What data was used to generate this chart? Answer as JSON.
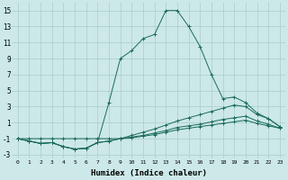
{
  "xlabel": "Humidex (Indice chaleur)",
  "background_color": "#cce8e8",
  "grid_color": "#aacccc",
  "line_color": "#1a6b5a",
  "xlim": [
    -0.5,
    23.5
  ],
  "ylim": [
    -3.5,
    16
  ],
  "xticks": [
    0,
    1,
    2,
    3,
    4,
    5,
    6,
    7,
    8,
    9,
    10,
    11,
    12,
    13,
    14,
    15,
    16,
    17,
    18,
    19,
    20,
    21,
    22,
    23
  ],
  "yticks": [
    -3,
    -1,
    1,
    3,
    5,
    7,
    9,
    11,
    13,
    15
  ],
  "series": [
    {
      "x": [
        0,
        1,
        2,
        3,
        4,
        5,
        6,
        7,
        8,
        9,
        10,
        11,
        12,
        13,
        14,
        15,
        16,
        17,
        18,
        19,
        20,
        21,
        22,
        23
      ],
      "y": [
        -1,
        -1.3,
        -1.6,
        -1.5,
        -2,
        -2.3,
        -2.2,
        -1.5,
        3.5,
        9,
        10.0,
        11.5,
        12.0,
        15,
        15,
        13,
        10.5,
        7,
        4,
        4.2,
        3.5,
        2.2,
        1.5,
        0.5
      ]
    },
    {
      "x": [
        0,
        1,
        2,
        3,
        4,
        5,
        6,
        7,
        8,
        9,
        10,
        11,
        12,
        13,
        14,
        15,
        16,
        17,
        18,
        19,
        20,
        21,
        22,
        23
      ],
      "y": [
        -1,
        -1.3,
        -1.6,
        -1.5,
        -2,
        -2.3,
        -2.2,
        -1.5,
        -1.3,
        -1.0,
        -0.6,
        -0.2,
        0.2,
        0.7,
        1.2,
        1.6,
        2.0,
        2.4,
        2.8,
        3.2,
        3.0,
        2.0,
        1.5,
        0.5
      ]
    },
    {
      "x": [
        0,
        1,
        2,
        3,
        4,
        5,
        6,
        7,
        8,
        9,
        10,
        11,
        12,
        13,
        14,
        15,
        16,
        17,
        18,
        19,
        20,
        21,
        22,
        23
      ],
      "y": [
        -1,
        -1.3,
        -1.6,
        -1.5,
        -2,
        -2.3,
        -2.2,
        -1.5,
        -1.3,
        -1.0,
        -0.8,
        -0.6,
        -0.3,
        0.0,
        0.4,
        0.6,
        0.8,
        1.1,
        1.4,
        1.6,
        1.8,
        1.2,
        0.8,
        0.3
      ]
    },
    {
      "x": [
        0,
        1,
        2,
        3,
        4,
        5,
        6,
        7,
        8,
        9,
        10,
        11,
        12,
        13,
        14,
        15,
        16,
        17,
        18,
        19,
        20,
        21,
        22,
        23
      ],
      "y": [
        -1,
        -1,
        -1,
        -1,
        -1,
        -1,
        -1,
        -1,
        -1,
        -1,
        -0.9,
        -0.7,
        -0.5,
        -0.2,
        0.1,
        0.3,
        0.5,
        0.7,
        0.9,
        1.1,
        1.3,
        0.9,
        0.6,
        0.3
      ]
    }
  ]
}
